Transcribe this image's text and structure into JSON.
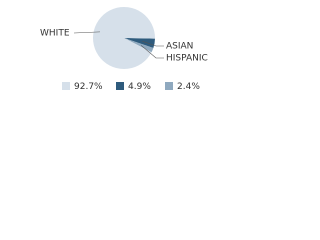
{
  "chart_data": {
    "type": "pie",
    "categories": [
      "WHITE",
      "ASIAN",
      "HISPANIC"
    ],
    "values": [
      92.7,
      4.9,
      2.4
    ],
    "value_labels": [
      "92.7%",
      "4.9%",
      "2.4%"
    ],
    "colors": [
      "#d6e0ea",
      "#2e5b7d",
      "#8fa9bf"
    ]
  }
}
